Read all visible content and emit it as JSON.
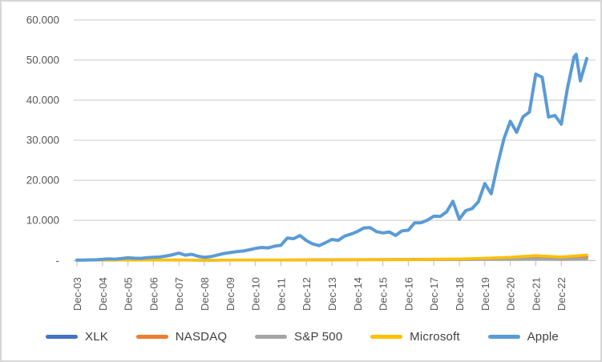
{
  "chart_data": {
    "type": "line",
    "title": "",
    "description": "Indexed performance (Dec-03 = 100) of XLK, NASDAQ, S&P 500, Microsoft and Apple; values shown in thousands with dot separator",
    "y_axis": {
      "min": 0,
      "max": 60000,
      "grid": true,
      "ticks": [
        {
          "label": "60.000",
          "value": 60000
        },
        {
          "label": "50.000",
          "value": 50000
        },
        {
          "label": "40.000",
          "value": 40000
        },
        {
          "label": "30.000",
          "value": 30000
        },
        {
          "label": "20.000",
          "value": 20000
        },
        {
          "label": "10.000",
          "value": 10000
        },
        {
          "label": "-",
          "value": 0
        }
      ]
    },
    "x_axis": {
      "unit": "months since Dec-2003",
      "tick_months": [
        0,
        12,
        24,
        36,
        48,
        60,
        72,
        84,
        96,
        108,
        120,
        132,
        144,
        156,
        168,
        180,
        192,
        204,
        216,
        228
      ],
      "tick_labels": [
        "Dec-03",
        "Dec-04",
        "Dec-05",
        "Dec-06",
        "Dec-07",
        "Dec-08",
        "Dec-09",
        "Dec-10",
        "Dec-11",
        "Dec-12",
        "Dec-13",
        "Dec-14",
        "Dec-15",
        "Dec-16",
        "Dec-17",
        "Dec-18",
        "Dec-19",
        "Dec-20",
        "Dec-21",
        "Dec-22"
      ]
    },
    "legend": {
      "position": "bottom",
      "entries": [
        "XLK",
        "NASDAQ",
        "S&P 500",
        "Microsoft",
        "Apple"
      ]
    },
    "series": [
      {
        "name": "XLK",
        "color": "#4472C4",
        "months": [
          0,
          12,
          24,
          36,
          48,
          60,
          72,
          84,
          96,
          108,
          120,
          132,
          144,
          156,
          168,
          180,
          192,
          204,
          216,
          228,
          240
        ],
        "values": [
          100,
          100,
          101,
          110,
          122,
          72,
          110,
          121,
          123,
          139,
          172,
          199,
          206,
          232,
          308,
          298,
          441,
          620,
          836,
          599,
          926
        ]
      },
      {
        "name": "NASDAQ",
        "color": "#ED7D31",
        "months": [
          0,
          12,
          24,
          36,
          48,
          60,
          72,
          84,
          96,
          108,
          120,
          132,
          144,
          156,
          168,
          180,
          192,
          204,
          216,
          228,
          240
        ],
        "values": [
          100,
          109,
          110,
          121,
          132,
          79,
          113,
          132,
          130,
          151,
          208,
          236,
          250,
          269,
          345,
          331,
          448,
          643,
          781,
          522,
          749
        ]
      },
      {
        "name": "S&P 500",
        "color": "#A5A5A5",
        "months": [
          0,
          12,
          24,
          36,
          48,
          60,
          72,
          84,
          96,
          108,
          120,
          132,
          144,
          156,
          168,
          180,
          192,
          204,
          216,
          228,
          240
        ],
        "values": [
          100,
          109,
          112,
          128,
          132,
          81,
          100,
          113,
          113,
          128,
          166,
          185,
          184,
          201,
          240,
          225,
          291,
          338,
          429,
          345,
          429
        ]
      },
      {
        "name": "Microsoft",
        "color": "#FFC000",
        "months": [
          0,
          12,
          24,
          36,
          48,
          60,
          72,
          84,
          96,
          108,
          120,
          132,
          144,
          156,
          168,
          180,
          192,
          204,
          216,
          228,
          240
        ],
        "values": [
          100,
          98,
          96,
          109,
          130,
          71,
          111,
          102,
          95,
          98,
          137,
          170,
          203,
          227,
          313,
          371,
          576,
          813,
          1229,
          876,
          1374
        ]
      },
      {
        "name": "Apple",
        "color": "#5B9BD5",
        "months": [
          0,
          3,
          6,
          9,
          12,
          15,
          18,
          21,
          24,
          27,
          30,
          33,
          36,
          39,
          42,
          45,
          48,
          51,
          54,
          57,
          60,
          63,
          66,
          69,
          72,
          75,
          78,
          81,
          84,
          87,
          90,
          93,
          96,
          99,
          102,
          105,
          108,
          111,
          114,
          117,
          120,
          123,
          126,
          129,
          132,
          135,
          138,
          141,
          144,
          147,
          150,
          153,
          156,
          159,
          162,
          165,
          168,
          171,
          174,
          177,
          180,
          183,
          186,
          189,
          192,
          195,
          198,
          201,
          204,
          207,
          210,
          213,
          216,
          219,
          222,
          225,
          228,
          231,
          234,
          235,
          237,
          240
        ],
        "values": [
          100,
          127,
          152,
          181,
          301,
          390,
          345,
          501,
          672,
          587,
          534,
          720,
          793,
          869,
          1141,
          1435,
          1851,
          1343,
          1566,
          1063,
          798,
          983,
          1331,
          1733,
          1971,
          2197,
          2351,
          2652,
          3016,
          3258,
          3139,
          3566,
          3785,
          5602,
          5459,
          6239,
          4977,
          4139,
          3707,
          4457,
          5246,
          5022,
          6083,
          6591,
          7223,
          8136,
          8202,
          7215,
          6885,
          7130,
          6255,
          7396,
          7579,
          9398,
          9421,
          10086,
          11073,
          10982,
          12115,
          14774,
          10314,
          12435,
          12951,
          14654,
          19214,
          16649,
          23881,
          30320,
          34738,
          31976,
          35857,
          37040,
          46492,
          45709,
          35785,
          36178,
          34005,
          43161,
          50768,
          51427,
          44822,
          50401
        ]
      }
    ],
    "colors": {
      "gridline": "#D9D9D9",
      "baseline": "#C6C6C6",
      "tick": "#C6C6C6",
      "axis_text": "#595959",
      "legend_text": "#404040",
      "frame_border": "#D6D6D6",
      "background": "#FFFFFF"
    }
  }
}
